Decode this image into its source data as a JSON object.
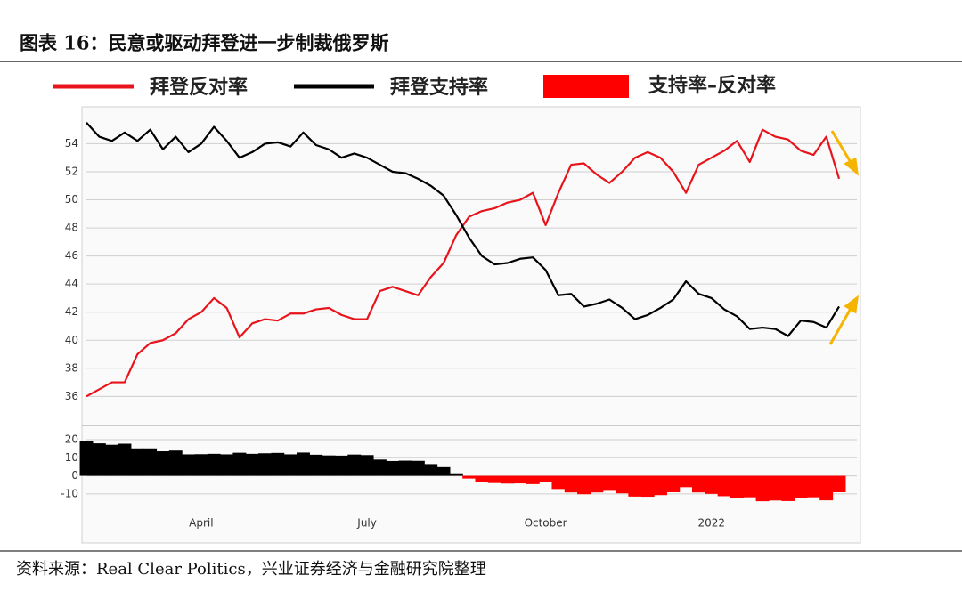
{
  "chart_data": [
    {
      "type": "line",
      "title": "图表 16：民意或驱动拜登进一步制裁俄罗斯",
      "series": [
        {
          "name": "拜登反对率",
          "color": "#e8141b",
          "values": [
            36.0,
            36.5,
            37.0,
            37.0,
            39.0,
            39.8,
            40.0,
            40.5,
            41.5,
            42.0,
            43.0,
            42.3,
            40.2,
            41.2,
            41.5,
            41.4,
            41.9,
            41.9,
            42.2,
            42.3,
            41.8,
            41.5,
            41.5,
            43.5,
            43.8,
            43.5,
            43.2,
            44.5,
            45.5,
            47.5,
            48.8,
            49.2,
            49.4,
            49.8,
            50.0,
            50.5,
            48.2,
            50.5,
            52.5,
            52.6,
            51.8,
            51.2,
            52.0,
            53.0,
            53.4,
            53.0,
            52.0,
            50.5,
            52.5,
            53.0,
            53.5,
            54.2,
            52.7,
            55.0,
            54.5,
            54.3,
            53.5,
            53.2,
            54.5,
            51.5
          ]
        },
        {
          "name": "拜登支持率",
          "color": "#000000",
          "values": [
            55.5,
            54.5,
            54.2,
            54.8,
            54.2,
            55.0,
            53.6,
            54.5,
            53.4,
            54.0,
            55.2,
            54.2,
            53.0,
            53.4,
            54.0,
            54.1,
            53.8,
            54.8,
            53.9,
            53.6,
            53.0,
            53.3,
            53.0,
            52.5,
            52.0,
            51.9,
            51.5,
            51.0,
            50.3,
            48.9,
            47.3,
            46.0,
            45.4,
            45.5,
            45.8,
            45.9,
            45.0,
            43.2,
            43.3,
            42.4,
            42.6,
            42.9,
            42.3,
            41.5,
            41.8,
            42.3,
            42.9,
            44.2,
            43.3,
            43.0,
            42.2,
            41.7,
            40.8,
            40.9,
            40.8,
            40.3,
            41.4,
            41.3,
            40.9,
            42.4
          ]
        }
      ],
      "ylim": [
        34.5,
        56.5
      ],
      "yticks": [
        36,
        38,
        40,
        42,
        44,
        46,
        48,
        50,
        52,
        54
      ],
      "grid": true
    },
    {
      "type": "bar",
      "categories": [
        null,
        null,
        null,
        null,
        null,
        null,
        null,
        null,
        null,
        "April",
        null,
        null,
        null,
        null,
        null,
        null,
        null,
        null,
        null,
        null,
        null,
        null,
        "July",
        null,
        null,
        null,
        null,
        null,
        null,
        null,
        null,
        null,
        null,
        null,
        null,
        null,
        "October",
        null,
        null,
        null,
        null,
        null,
        null,
        null,
        null,
        null,
        null,
        null,
        null,
        "2022",
        null,
        null,
        null,
        null,
        null,
        null,
        null,
        null,
        null,
        null
      ],
      "series": [
        {
          "name": "支持率–反对率",
          "color": "#ff0000",
          "positive_color": "#000000",
          "values": [
            19.5,
            18,
            17.2,
            17.8,
            15.2,
            15.2,
            13.6,
            14,
            11.9,
            12,
            12.2,
            11.9,
            12.8,
            12.2,
            12.5,
            12.7,
            11.9,
            12.9,
            11.7,
            11.3,
            11.2,
            11.8,
            11.5,
            9,
            8.2,
            8.4,
            8.3,
            6.5,
            4.8,
            1.4,
            -1.5,
            -3.2,
            -4,
            -4.3,
            -4.2,
            -4.6,
            -3.2,
            -7.3,
            -9.2,
            -10.2,
            -9.2,
            -8.3,
            -9.7,
            -11.5,
            -11.6,
            -10.7,
            -9.1,
            -6.3,
            -9.2,
            -10,
            -11.3,
            -12.5,
            -11.9,
            -14.1,
            -13.7,
            -14,
            -12.1,
            -11.9,
            -13.6,
            -9.1
          ]
        }
      ],
      "ylim": [
        -17,
        22
      ],
      "yticks": [
        -10,
        0,
        10,
        20
      ],
      "grid": true
    }
  ],
  "source": "资料来源：Real Clear Politics，兴业证券经济与金融研究院整理"
}
